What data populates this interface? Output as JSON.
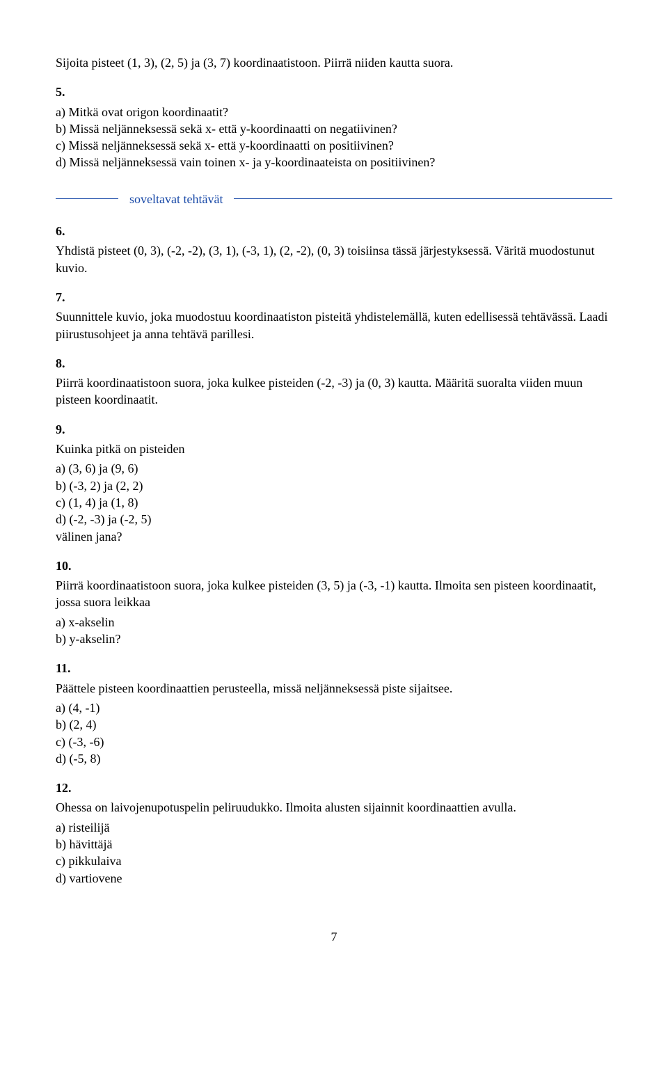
{
  "page_number": "7",
  "colors": {
    "divider": "#1a4aa8",
    "text": "#000000",
    "bg": "#ffffff"
  },
  "typography": {
    "font_family": "Times New Roman",
    "base_size_pt": 14
  },
  "intro_line": "Sijoita pisteet (1, 3), (2, 5) ja (3, 7) koordinaatistoon. Piirrä niiden kautta suora.",
  "ex5": {
    "num": "5.",
    "items": [
      "a)  Mitkä ovat origon koordinaatit?",
      "b)  Missä neljänneksessä sekä x- että y-koordinaatti on negatiivinen?",
      "c)  Missä neljänneksessä sekä x- että y-koordinaatti on positiivinen?",
      "d)  Missä neljänneksessä vain toinen x- ja y-koordinaateista on positiivinen?"
    ]
  },
  "divider_label": "soveltavat tehtävät",
  "ex6": {
    "num": "6.",
    "text": "Yhdistä pisteet (0, 3), (-2, -2), (3, 1), (-3, 1), (2, -2), (0, 3) toisiinsa tässä järjestyksessä. Väritä muodostunut kuvio."
  },
  "ex7": {
    "num": "7.",
    "text": "Suunnittele kuvio, joka muodostuu koordinaatiston pisteitä yhdistelemällä, kuten edellisessä tehtävässä. Laadi piirustusohjeet ja anna tehtävä parillesi."
  },
  "ex8": {
    "num": "8.",
    "text": "Piirrä koordinaatistoon suora, joka kulkee pisteiden (-2, -3) ja (0, 3) kautta. Määritä suoralta viiden muun pisteen koordinaatit."
  },
  "ex9": {
    "num": "9.",
    "lead": "Kuinka pitkä on pisteiden",
    "items": [
      "a)  (3, 6) ja (9, 6)",
      "b)  (-3, 2) ja (2, 2)",
      "c)  (1, 4) ja (1, 8)",
      "d)  (-2, -3) ja (-2, 5)"
    ],
    "trail": "välinen jana?"
  },
  "ex10": {
    "num": "10.",
    "lead": "Piirrä koordinaatistoon suora, joka kulkee pisteiden (3, 5) ja (-3, -1) kautta. Ilmoita sen pisteen koordinaatit, jossa suora leikkaa",
    "items": [
      "a)  x-akselin",
      "b)  y-akselin?"
    ]
  },
  "ex11": {
    "num": "11.",
    "lead": "Päättele pisteen koordinaattien perusteella, missä neljänneksessä piste sijaitsee.",
    "items": [
      "a)  (4, -1)",
      "b)  (2, 4)",
      "c)  (-3, -6)",
      "d)  (-5, 8)"
    ]
  },
  "ex12": {
    "num": "12.",
    "lead": "Ohessa on laivojenupotuspelin peliruudukko. Ilmoita alusten sijainnit koordinaattien avulla.",
    "items": [
      "a)  risteilijä",
      "b)  hävittäjä",
      "c)  pikkulaiva",
      "d)  vartiovene"
    ]
  }
}
